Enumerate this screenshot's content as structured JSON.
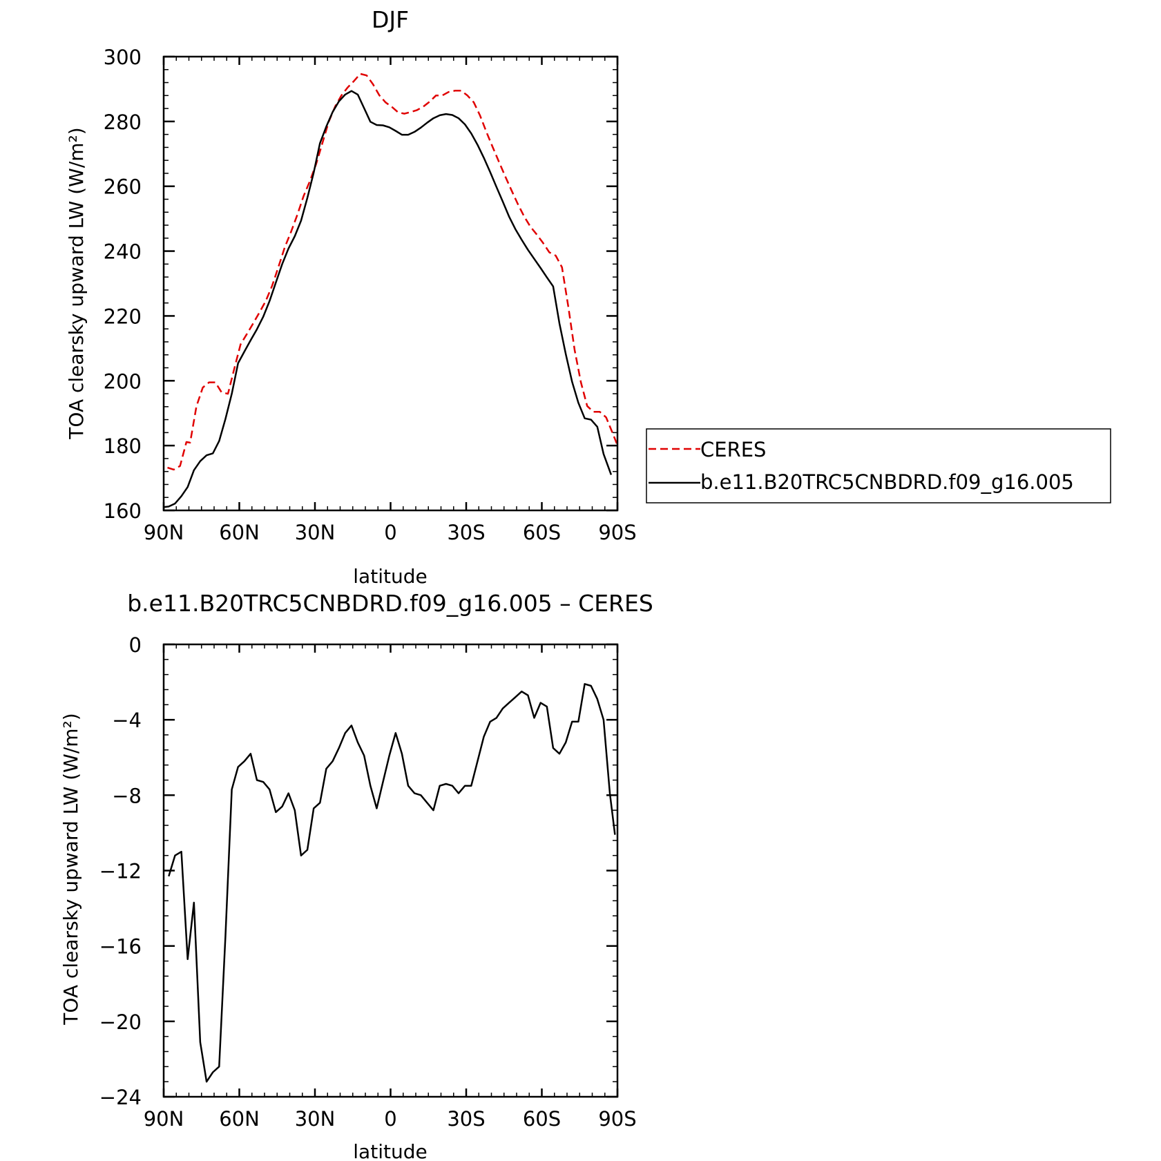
{
  "chart_data": [
    {
      "type": "line",
      "title": "DJF",
      "xlabel": "latitude",
      "ylabel": "TOA clearsky upward LW (W/m²)",
      "xlim": [
        90,
        -90
      ],
      "ylim": [
        160,
        300
      ],
      "x_ticks": [
        90,
        60,
        30,
        0,
        -30,
        -60,
        -90
      ],
      "x_tick_labels": [
        "90N",
        "60N",
        "30N",
        "0",
        "30S",
        "60S",
        "90S"
      ],
      "y_ticks": [
        160,
        180,
        200,
        220,
        240,
        260,
        280,
        300
      ],
      "y_tick_labels": [
        "160",
        "180",
        "200",
        "220",
        "240",
        "260",
        "280",
        "300"
      ],
      "grid": false,
      "legend_position": "right",
      "series": [
        {
          "name": "CERES",
          "color": "#e00000",
          "dash": "dashed",
          "points": [
            [
              88.5,
              173.2
            ],
            [
              86.0,
              172.6
            ],
            [
              83.5,
              173.7
            ],
            [
              81.0,
              181.1
            ],
            [
              79.5,
              180.9
            ],
            [
              77.0,
              192.1
            ],
            [
              74.5,
              197.9
            ],
            [
              72.0,
              199.5
            ],
            [
              69.5,
              199.5
            ],
            [
              67.0,
              196.4
            ],
            [
              64.5,
              196.0
            ],
            [
              62.0,
              203.7
            ],
            [
              59.5,
              211.2
            ],
            [
              57.0,
              214.4
            ],
            [
              54.5,
              217.7
            ],
            [
              52.0,
              221.1
            ],
            [
              49.5,
              224.6
            ],
            [
              47.0,
              229.3
            ],
            [
              44.5,
              235.1
            ],
            [
              42.0,
              241.1
            ],
            [
              39.5,
              245.9
            ],
            [
              37.0,
              251.2
            ],
            [
              34.5,
              257.0
            ],
            [
              32.0,
              261.6
            ],
            [
              29.5,
              266.9
            ],
            [
              27.0,
              273.4
            ],
            [
              24.5,
              280.0
            ],
            [
              22.0,
              284.6
            ],
            [
              19.5,
              288.0
            ],
            [
              17.0,
              290.5
            ],
            [
              14.5,
              292.5
            ],
            [
              12.0,
              294.7
            ],
            [
              9.5,
              294.2
            ],
            [
              7.0,
              291.5
            ],
            [
              4.5,
              288.1
            ],
            [
              2.0,
              285.9
            ],
            [
              -0.5,
              284.5
            ],
            [
              -3.0,
              282.8
            ],
            [
              -5.5,
              282.4
            ],
            [
              -8.0,
              282.9
            ],
            [
              -10.5,
              283.5
            ],
            [
              -13.0,
              284.6
            ],
            [
              -15.5,
              286.1
            ],
            [
              -18.0,
              288.0
            ],
            [
              -20.5,
              288.0
            ],
            [
              -23.0,
              289.1
            ],
            [
              -25.5,
              289.5
            ],
            [
              -28.0,
              289.5
            ],
            [
              -30.5,
              288.0
            ],
            [
              -33.0,
              285.9
            ],
            [
              -35.5,
              281.8
            ],
            [
              -38.0,
              276.8
            ],
            [
              -40.5,
              272.1
            ],
            [
              -43.0,
              267.5
            ],
            [
              -45.5,
              263.0
            ],
            [
              -48.0,
              258.7
            ],
            [
              -50.5,
              254.5
            ],
            [
              -53.0,
              250.7
            ],
            [
              -55.5,
              247.5
            ],
            [
              -58.0,
              245.1
            ],
            [
              -60.5,
              242.5
            ],
            [
              -63.0,
              239.6
            ],
            [
              -65.5,
              238.6
            ],
            [
              -68.0,
              235.0
            ],
            [
              -70.5,
              222.9
            ],
            [
              -73.0,
              209.5
            ],
            [
              -75.5,
              199.5
            ],
            [
              -78.0,
              192.2
            ],
            [
              -80.5,
              190.4
            ],
            [
              -83.0,
              190.4
            ],
            [
              -85.5,
              188.7
            ],
            [
              -88.0,
              184.0
            ],
            [
              -90.0,
              180.1
            ]
          ]
        },
        {
          "name": "b.e11.B20TRC5CNBDRD.f09_g16.005",
          "color": "#000000",
          "dash": "solid",
          "points": [
            [
              90.0,
              161.0
            ],
            [
              88.0,
              161.2
            ],
            [
              85.5,
              162.1
            ],
            [
              83.0,
              164.4
            ],
            [
              80.5,
              167.2
            ],
            [
              78.0,
              172.4
            ],
            [
              75.5,
              175.2
            ],
            [
              73.0,
              177.0
            ],
            [
              70.5,
              177.6
            ],
            [
              68.0,
              181.4
            ],
            [
              65.5,
              188.2
            ],
            [
              63.0,
              196.0
            ],
            [
              60.5,
              205.4
            ],
            [
              58.0,
              209.0
            ],
            [
              55.5,
              212.5
            ],
            [
              53.0,
              215.9
            ],
            [
              50.5,
              219.8
            ],
            [
              48.0,
              224.6
            ],
            [
              45.5,
              230.3
            ],
            [
              43.0,
              236.0
            ],
            [
              40.5,
              240.8
            ],
            [
              38.0,
              244.6
            ],
            [
              35.5,
              249.4
            ],
            [
              33.0,
              256.4
            ],
            [
              30.5,
              264.2
            ],
            [
              28.0,
              273.3
            ],
            [
              25.5,
              278.4
            ],
            [
              23.0,
              282.9
            ],
            [
              20.5,
              286.2
            ],
            [
              18.0,
              288.3
            ],
            [
              15.5,
              289.4
            ],
            [
              13.0,
              288.3
            ],
            [
              10.5,
              284.1
            ],
            [
              8.0,
              279.9
            ],
            [
              5.5,
              278.9
            ],
            [
              3.0,
              278.8
            ],
            [
              0.5,
              278.2
            ],
            [
              -2.0,
              277.1
            ],
            [
              -4.5,
              275.9
            ],
            [
              -7.0,
              275.9
            ],
            [
              -9.5,
              276.8
            ],
            [
              -12.0,
              278.1
            ],
            [
              -14.5,
              279.6
            ],
            [
              -17.0,
              281.0
            ],
            [
              -19.5,
              281.9
            ],
            [
              -22.0,
              282.3
            ],
            [
              -24.5,
              282.0
            ],
            [
              -27.0,
              281.0
            ],
            [
              -29.5,
              279.1
            ],
            [
              -32.0,
              276.3
            ],
            [
              -34.5,
              272.8
            ],
            [
              -37.0,
              268.8
            ],
            [
              -39.5,
              264.4
            ],
            [
              -42.0,
              259.8
            ],
            [
              -44.5,
              255.3
            ],
            [
              -47.0,
              250.7
            ],
            [
              -49.5,
              246.8
            ],
            [
              -52.0,
              243.5
            ],
            [
              -54.5,
              240.4
            ],
            [
              -57.0,
              237.6
            ],
            [
              -59.5,
              234.8
            ],
            [
              -62.0,
              231.9
            ],
            [
              -64.5,
              229.1
            ],
            [
              -67.0,
              217.7
            ],
            [
              -69.5,
              208.2
            ],
            [
              -72.0,
              199.7
            ],
            [
              -74.5,
              193.2
            ],
            [
              -77.0,
              188.4
            ],
            [
              -79.5,
              188.0
            ],
            [
              -82.0,
              185.8
            ],
            [
              -84.5,
              177.4
            ],
            [
              -87.5,
              171.0
            ]
          ]
        }
      ]
    },
    {
      "type": "line",
      "title": "b.e11.B20TRC5CNBDRD.f09_g16.005 – CERES",
      "xlabel": "latitude",
      "ylabel": "TOA clearsky upward LW (W/m²)",
      "xlim": [
        90,
        -90
      ],
      "ylim": [
        -24,
        0
      ],
      "x_ticks": [
        90,
        60,
        30,
        0,
        -30,
        -60,
        -90
      ],
      "x_tick_labels": [
        "90N",
        "60N",
        "30N",
        "0",
        "30S",
        "60S",
        "90S"
      ],
      "y_ticks": [
        -24,
        -20,
        -16,
        -12,
        -8,
        -4,
        0
      ],
      "y_tick_labels": [
        "−24",
        "−20",
        "−16",
        "−12",
        "−8",
        "−4",
        "0"
      ],
      "grid": false,
      "series": [
        {
          "color": "#000000",
          "dash": "solid",
          "points": [
            [
              88.0,
              -12.3
            ],
            [
              85.5,
              -11.2
            ],
            [
              83.0,
              -11.0
            ],
            [
              80.5,
              -16.7
            ],
            [
              78.0,
              -13.7
            ],
            [
              75.5,
              -21.1
            ],
            [
              73.0,
              -23.2
            ],
            [
              70.5,
              -22.7
            ],
            [
              68.0,
              -22.4
            ],
            [
              65.5,
              -15.5
            ],
            [
              63.0,
              -7.7
            ],
            [
              60.5,
              -6.5
            ],
            [
              58.0,
              -6.2
            ],
            [
              55.5,
              -5.8
            ],
            [
              53.0,
              -7.2
            ],
            [
              50.5,
              -7.3
            ],
            [
              48.0,
              -7.7
            ],
            [
              45.5,
              -8.9
            ],
            [
              43.0,
              -8.6
            ],
            [
              40.5,
              -7.9
            ],
            [
              38.0,
              -8.8
            ],
            [
              35.5,
              -11.2
            ],
            [
              33.0,
              -10.9
            ],
            [
              30.5,
              -8.7
            ],
            [
              28.0,
              -8.4
            ],
            [
              25.5,
              -6.6
            ],
            [
              23.0,
              -6.2
            ],
            [
              20.5,
              -5.5
            ],
            [
              18.0,
              -4.7
            ],
            [
              15.5,
              -4.3
            ],
            [
              13.0,
              -5.2
            ],
            [
              10.5,
              -5.9
            ],
            [
              8.0,
              -7.5
            ],
            [
              5.5,
              -8.7
            ],
            [
              3.0,
              -7.3
            ],
            [
              0.5,
              -5.9
            ],
            [
              -2.0,
              -4.7
            ],
            [
              -4.5,
              -5.8
            ],
            [
              -7.0,
              -7.5
            ],
            [
              -9.5,
              -7.9
            ],
            [
              -12.0,
              -8.0
            ],
            [
              -14.5,
              -8.4
            ],
            [
              -17.0,
              -8.8
            ],
            [
              -19.5,
              -7.5
            ],
            [
              -22.0,
              -7.4
            ],
            [
              -24.5,
              -7.5
            ],
            [
              -27.0,
              -7.9
            ],
            [
              -29.5,
              -7.5
            ],
            [
              -32.0,
              -7.5
            ],
            [
              -34.5,
              -6.2
            ],
            [
              -37.0,
              -4.9
            ],
            [
              -39.5,
              -4.1
            ],
            [
              -42.0,
              -3.9
            ],
            [
              -44.5,
              -3.4
            ],
            [
              -47.0,
              -3.1
            ],
            [
              -49.5,
              -2.8
            ],
            [
              -52.0,
              -2.5
            ],
            [
              -54.5,
              -2.7
            ],
            [
              -57.0,
              -3.9
            ],
            [
              -59.5,
              -3.1
            ],
            [
              -62.0,
              -3.3
            ],
            [
              -64.5,
              -5.5
            ],
            [
              -67.0,
              -5.8
            ],
            [
              -69.5,
              -5.2
            ],
            [
              -72.0,
              -4.1
            ],
            [
              -74.5,
              -4.1
            ],
            [
              -77.0,
              -2.1
            ],
            [
              -79.5,
              -2.2
            ],
            [
              -82.0,
              -2.9
            ],
            [
              -84.5,
              -4.0
            ],
            [
              -87.0,
              -7.9
            ],
            [
              -89.0,
              -10.1
            ]
          ]
        }
      ]
    }
  ],
  "legend": {
    "entries": [
      {
        "label": "CERES",
        "color": "#e00000",
        "dash": "dashed"
      },
      {
        "label": "b.e11.B20TRC5CNBDRD.f09_g16.005",
        "color": "#000000",
        "dash": "solid"
      }
    ]
  }
}
